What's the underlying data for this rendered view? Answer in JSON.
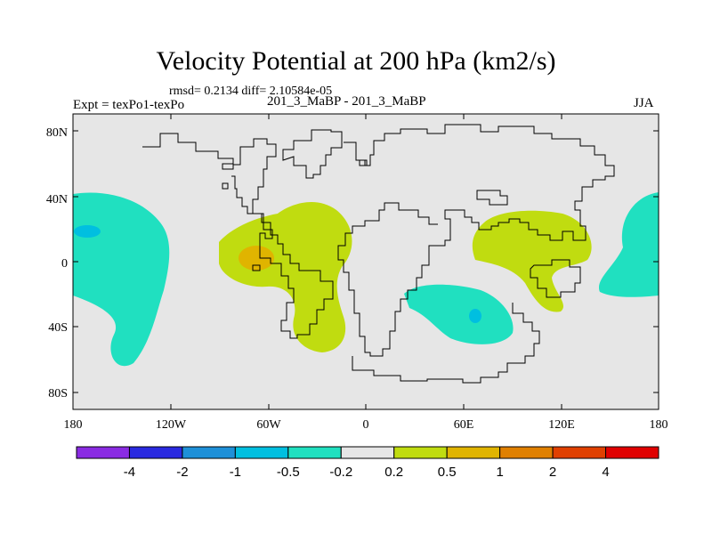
{
  "header": {
    "title": "Velocity Potential at 200 hPa (km2/s)",
    "stats": "rmsd= 0.2134 diff= 2.10584e-05",
    "subtitle": "201_3_MaBP - 201_3_MaBP",
    "expt": "Expt = texPo1-texPo",
    "season": "JJA"
  },
  "axes": {
    "y_ticks": [
      "80N",
      "40N",
      "0",
      "40S",
      "80S"
    ],
    "x_ticks": [
      "180",
      "120W",
      "60W",
      "0",
      "60E",
      "120E",
      "180"
    ]
  },
  "colorbar": {
    "colors": [
      "#8a2be2",
      "#2a2ae0",
      "#1e90d8",
      "#00bfe0",
      "#20e0c0",
      "#e6e6e6",
      "#c0dc10",
      "#e0b400",
      "#e08000",
      "#e04000",
      "#e00000"
    ],
    "labels": [
      "-4",
      "-2",
      "-1",
      "-0.5",
      "-0.2",
      "0.2",
      "0.5",
      "1",
      "2",
      "4"
    ]
  },
  "map_colors": {
    "background": "#e6e6e6",
    "negative_weak": "#20e0c0",
    "negative_mid": "#00bfe0",
    "positive_weak": "#c0dc10",
    "positive_mid": "#e0b400"
  }
}
